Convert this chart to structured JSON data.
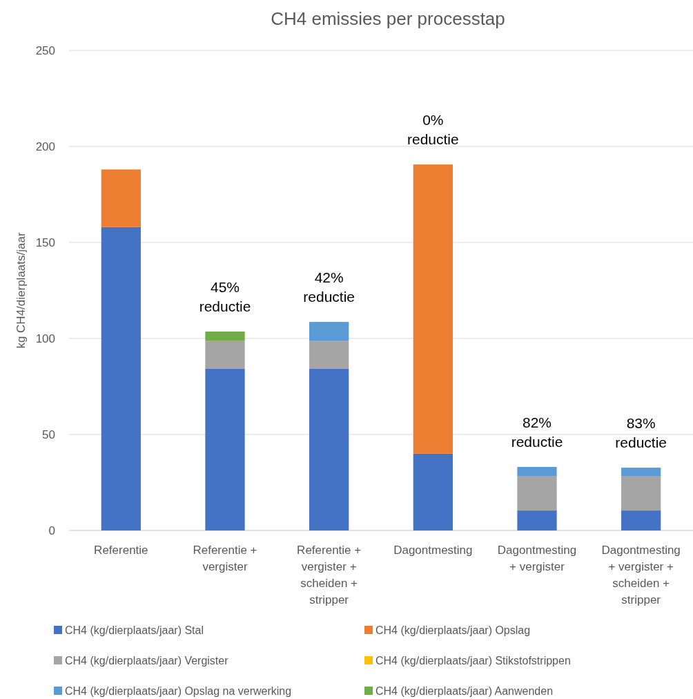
{
  "chart_data": {
    "type": "bar",
    "title": "CH4 emissies per processtap",
    "ylabel": "kg CH4/dierplaats/jaar",
    "stacked": true,
    "legend": "bottom",
    "grid": "y",
    "categories": [
      "Referentie",
      "Referentie + vergister",
      "Referentie + vergister + scheiden + stripper",
      "Dagontmesting",
      "Dagontmesting + vergister",
      "Dagontmesting + vergister + scheiden + stripper"
    ],
    "series": [
      {
        "name": "CH4 (kg/dierplaats/jaar) Stal",
        "color": "#4472c4",
        "values": [
          158,
          84.2,
          84.2,
          40,
          10.4,
          10.4
        ]
      },
      {
        "name": "CH4 (kg/dierplaats/jaar) Opslag",
        "color": "#ed7d31",
        "values": [
          30,
          0,
          0,
          150.6,
          0,
          0
        ]
      },
      {
        "name": "CH4 (kg/dierplaats/jaar) Vergister",
        "color": "#a5a5a5",
        "values": [
          0,
          14.7,
          14.7,
          0,
          18,
          18
        ]
      },
      {
        "name": "CH4 (kg/dierplaats/jaar) Stikstofstrippen",
        "color": "#ffc000",
        "values": [
          0,
          0,
          0,
          0,
          0,
          0
        ]
      },
      {
        "name": "CH4 (kg/dierplaats/jaar) Opslag na verwerking",
        "color": "#5b9bd5",
        "values": [
          0,
          0,
          9.7,
          0,
          4.7,
          4.3
        ]
      },
      {
        "name": "CH4 (kg/dierplaats/jaar) Aanwenden",
        "color": "#70ad47",
        "values": [
          0,
          4.7,
          0,
          0,
          0,
          0
        ]
      }
    ],
    "ylim": [
      0,
      250
    ],
    "yticks": [
      0,
      50,
      100,
      150,
      200,
      250
    ],
    "annotations": [
      "45%\nreductie",
      "42%\nreductie",
      "0%\nreductie",
      "82%\nreductie",
      "83%\nreductie"
    ]
  }
}
